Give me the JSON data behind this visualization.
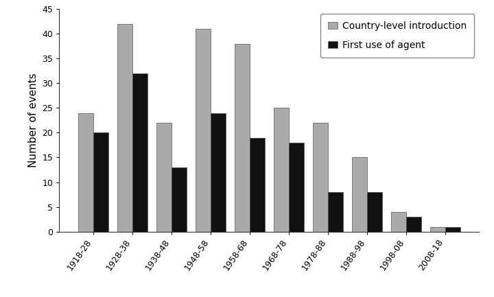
{
  "categories": [
    "1918-28",
    "1928-38",
    "1938-48",
    "1948-58",
    "1958-68",
    "1968-78",
    "1978-88",
    "1988-98",
    "1998-08",
    "2008-18"
  ],
  "country_intro": [
    24,
    42,
    22,
    41,
    38,
    25,
    22,
    15,
    4,
    1
  ],
  "first_use": [
    20,
    32,
    13,
    24,
    19,
    18,
    8,
    8,
    3,
    1
  ],
  "bar_color_country": "#aaaaaa",
  "bar_color_first": "#111111",
  "ylabel": "Number of events",
  "ylim": [
    0,
    45
  ],
  "yticks": [
    0,
    5,
    10,
    15,
    20,
    25,
    30,
    35,
    40,
    45
  ],
  "legend_country": "Country-level introduction",
  "legend_first": "First use of agent",
  "bar_width": 0.38,
  "edge_color": "#555555",
  "background_color": "#ffffff",
  "ylabel_fontsize": 11,
  "tick_fontsize": 9,
  "legend_fontsize": 10,
  "xtick_rotation": 55
}
